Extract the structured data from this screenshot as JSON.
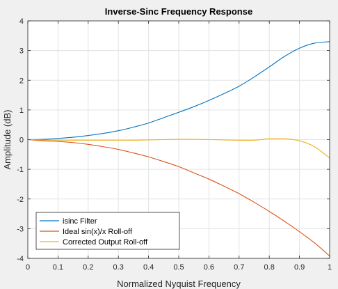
{
  "chart_data": {
    "type": "line",
    "title": "Inverse-Sinc Frequency Response",
    "xlabel": "Normalized Nyquist Frequency",
    "ylabel": "Amplitude (dB)",
    "xlim": [
      0,
      1
    ],
    "ylim": [
      -4,
      4
    ],
    "xticks": [
      0,
      0.1,
      0.2,
      0.3,
      0.4,
      0.5,
      0.6,
      0.7,
      0.8,
      0.9,
      1
    ],
    "xtick_labels": [
      "0",
      "0.1",
      "0.2",
      "0.3",
      "0.4",
      "0.5",
      "0.6",
      "0.7",
      "0.8",
      "0.9",
      "1"
    ],
    "yticks": [
      -4,
      -3,
      -2,
      -1,
      0,
      1,
      2,
      3,
      4
    ],
    "ytick_labels": [
      "-4",
      "-3",
      "-2",
      "-1",
      "0",
      "1",
      "2",
      "3",
      "4"
    ],
    "grid": true,
    "legend_position": "bottom-left",
    "x": [
      0,
      0.05,
      0.1,
      0.15,
      0.2,
      0.25,
      0.3,
      0.35,
      0.4,
      0.45,
      0.5,
      0.55,
      0.6,
      0.65,
      0.7,
      0.75,
      0.8,
      0.85,
      0.9,
      0.95,
      1.0
    ],
    "series": [
      {
        "name": "isinc Filter",
        "color": "#0072bd",
        "values": [
          0,
          0.01,
          0.04,
          0.08,
          0.14,
          0.21,
          0.3,
          0.42,
          0.56,
          0.74,
          0.92,
          1.11,
          1.32,
          1.55,
          1.8,
          2.11,
          2.45,
          2.8,
          3.08,
          3.25,
          3.3
        ]
      },
      {
        "name": "Ideal sin(x)/x Roll-off",
        "color": "#d95319",
        "values": [
          0,
          -0.04,
          -0.06,
          -0.1,
          -0.16,
          -0.24,
          -0.33,
          -0.45,
          -0.58,
          -0.74,
          -0.91,
          -1.12,
          -1.33,
          -1.57,
          -1.82,
          -2.11,
          -2.42,
          -2.75,
          -3.1,
          -3.48,
          -3.92
        ]
      },
      {
        "name": "Corrected Output Roll-off",
        "color": "#edb120",
        "values": [
          0,
          -0.01,
          -0.02,
          -0.02,
          -0.02,
          -0.02,
          -0.02,
          -0.02,
          -0.01,
          0,
          0.01,
          0.01,
          0,
          -0.01,
          -0.02,
          -0.02,
          0.03,
          0.03,
          -0.04,
          -0.24,
          -0.62
        ]
      }
    ]
  }
}
